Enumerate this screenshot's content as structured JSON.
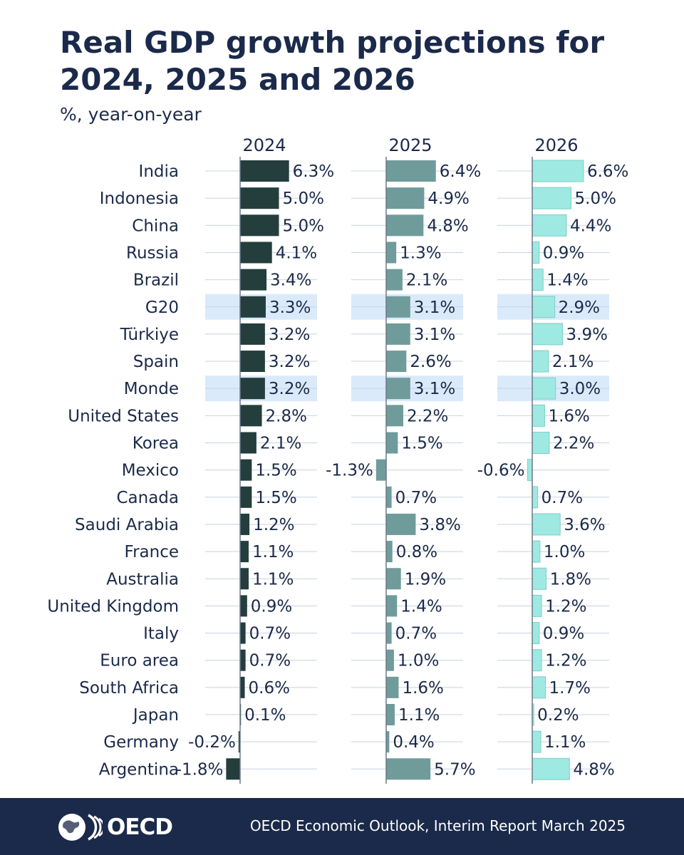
{
  "title": "Real GDP growth projections for 2024, 2025 and 2026",
  "subtitle": "%, year-on-year",
  "footer": {
    "logo_text": "OECD",
    "source": "OECD Economic Outlook, Interim Report March 2025"
  },
  "colors": {
    "series_2024": "#243e3e",
    "series_2025": "#6f9b9b",
    "series_2026": "#9ee9e1",
    "highlight": "#dbeafb",
    "footer_bg": "#1b2a4a",
    "text": "#1b2a4a"
  },
  "chart_data": {
    "type": "bar",
    "orientation": "horizontal",
    "categories": [
      "India",
      "Indonesia",
      "China",
      "Russia",
      "Brazil",
      "G20",
      "Türkiye",
      "Spain",
      "Monde",
      "United States",
      "Korea",
      "Mexico",
      "Canada",
      "Saudi Arabia",
      "France",
      "Australia",
      "United Kingdom",
      "Italy",
      "Euro area",
      "South Africa",
      "Japan",
      "Germany",
      "Argentina"
    ],
    "highlighted_categories": [
      "G20",
      "Monde"
    ],
    "series": [
      {
        "name": "2024",
        "values": [
          6.3,
          5.0,
          5.0,
          4.1,
          3.4,
          3.3,
          3.2,
          3.2,
          3.2,
          2.8,
          2.1,
          1.5,
          1.5,
          1.2,
          1.1,
          1.1,
          0.9,
          0.7,
          0.7,
          0.6,
          0.1,
          -0.2,
          -1.8
        ]
      },
      {
        "name": "2025",
        "values": [
          6.4,
          4.9,
          4.8,
          1.3,
          2.1,
          3.1,
          3.1,
          2.6,
          3.1,
          2.2,
          1.5,
          -1.3,
          0.7,
          3.8,
          0.8,
          1.9,
          1.4,
          0.7,
          1.0,
          1.6,
          1.1,
          0.4,
          5.7
        ]
      },
      {
        "name": "2026",
        "values": [
          6.6,
          5.0,
          4.4,
          0.9,
          1.4,
          2.9,
          3.9,
          2.1,
          3.0,
          1.6,
          2.2,
          -0.6,
          0.7,
          3.6,
          1.0,
          1.8,
          1.2,
          0.9,
          1.2,
          1.7,
          0.2,
          1.1,
          4.8
        ]
      }
    ],
    "value_suffix": "%",
    "title": "Real GDP growth projections for 2024, 2025 and 2026",
    "ylabel": "%, year-on-year",
    "grid": false,
    "legend": "panel headers"
  }
}
